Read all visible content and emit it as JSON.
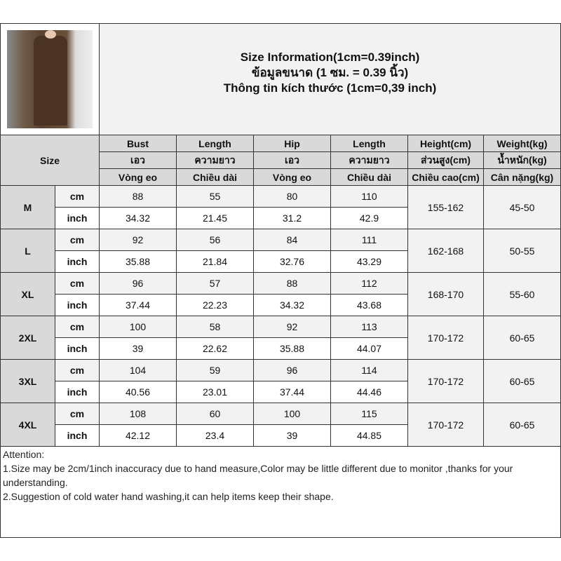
{
  "title": {
    "line_en": "Size Information(1cm=0.39inch)",
    "line_th": "ข้อมูลขนาด (1 ซม. = 0.39 นิ้ว)",
    "line_vi": "Thông tin kích thước (1cm=0,39 inch)"
  },
  "header": {
    "size_label": "Size",
    "columns": [
      {
        "en": "Bust",
        "th": "เอว",
        "vi": "Vòng eo"
      },
      {
        "en": "Length",
        "th": "ความยาว",
        "vi": "Chiều dài"
      },
      {
        "en": "Hip",
        "th": "เอว",
        "vi": "Vòng eo"
      },
      {
        "en": "Length",
        "th": "ความยาว",
        "vi": "Chiều dài"
      },
      {
        "en": "Height(cm)",
        "th": "ส่วนสูง(cm)",
        "vi": "Chiều cao(cm)"
      },
      {
        "en": "Weight(kg)",
        "th": "น้ำหนัก(kg)",
        "vi": "Cân nặng(kg)"
      }
    ]
  },
  "unit_labels": {
    "cm": "cm",
    "inch": "inch"
  },
  "sizes": [
    {
      "size": "M",
      "cm": [
        "88",
        "55",
        "80",
        "110"
      ],
      "inch": [
        "34.32",
        "21.45",
        "31.2",
        "42.9"
      ],
      "height": "155-162",
      "weight": "45-50"
    },
    {
      "size": "L",
      "cm": [
        "92",
        "56",
        "84",
        "111"
      ],
      "inch": [
        "35.88",
        "21.84",
        "32.76",
        "43.29"
      ],
      "height": "162-168",
      "weight": "50-55"
    },
    {
      "size": "XL",
      "cm": [
        "96",
        "57",
        "88",
        "112"
      ],
      "inch": [
        "37.44",
        "22.23",
        "34.32",
        "43.68"
      ],
      "height": "168-170",
      "weight": "55-60"
    },
    {
      "size": "2XL",
      "cm": [
        "100",
        "58",
        "92",
        "113"
      ],
      "inch": [
        "39",
        "22.62",
        "35.88",
        "44.07"
      ],
      "height": "170-172",
      "weight": "60-65"
    },
    {
      "size": "3XL",
      "cm": [
        "104",
        "59",
        "96",
        "114"
      ],
      "inch": [
        "40.56",
        "23.01",
        "37.44",
        "44.46"
      ],
      "height": "170-172",
      "weight": "60-65"
    },
    {
      "size": "4XL",
      "cm": [
        "108",
        "60",
        "100",
        "115"
      ],
      "inch": [
        "42.12",
        "23.4",
        "39",
        "44.85"
      ],
      "height": "170-172",
      "weight": "60-65"
    }
  ],
  "attention": {
    "heading": "Attention:",
    "note1": "1.Size may be 2cm/1inch inaccuracy due to hand measure,Color may be little different due to monitor ,thanks for your understanding.",
    "note2": "2.Suggestion of cold water hand washing,it can help items keep their shape."
  }
}
